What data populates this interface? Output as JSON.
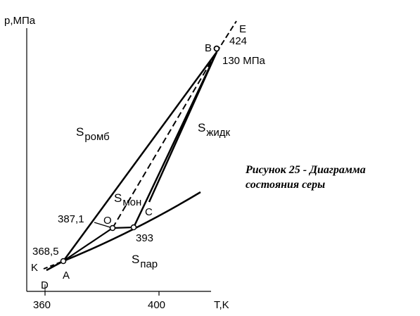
{
  "axes": {
    "y_label": "p,МПа",
    "x_label": "T,K",
    "x_ticks": [
      "360",
      "400"
    ]
  },
  "points": {
    "A": "A",
    "B": "B",
    "C": "C",
    "O": "O",
    "D": "D",
    "E": "E",
    "K": "K"
  },
  "values": {
    "b_temp": "424",
    "b_pressure": "130 МПа",
    "o_temp": "387,1",
    "c_temp": "393",
    "a_temp": "368,5"
  },
  "phases": {
    "rhombic": {
      "main": "S",
      "sub": "ромб"
    },
    "liquid": {
      "main": "S",
      "sub": "жидк"
    },
    "monoclinic": {
      "main": "S",
      "sub": "мон"
    },
    "vapor": {
      "main": "S",
      "sub": "пар"
    }
  },
  "caption": {
    "line1": "Рисунок 25 - Диаграмма",
    "line2": "состояния серы"
  }
}
